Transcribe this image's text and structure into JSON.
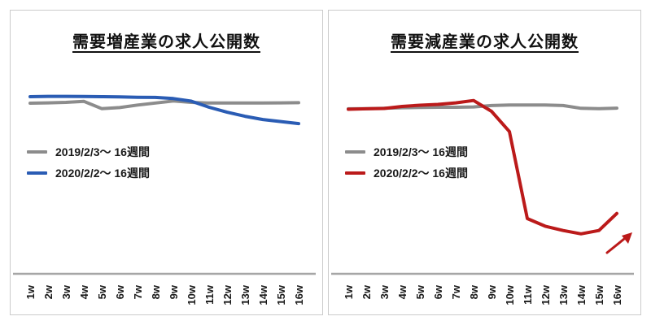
{
  "page": {
    "background": "#ffffff",
    "panel_border_color": "#cbcbcb",
    "axis_line_color": "#a6a6a6",
    "tick_label_color": "#1a1a1a"
  },
  "chart_data": [
    {
      "type": "line",
      "title": "需要増産業の求人公開数",
      "x": [
        "1w",
        "2w",
        "3w",
        "4w",
        "5w",
        "6w",
        "7w",
        "8w",
        "9w",
        "10w",
        "11w",
        "12w",
        "13w",
        "14w",
        "15w",
        "16w"
      ],
      "series": [
        {
          "name": "2019/2/3〜 16週間",
          "color": "#8c8c8c",
          "values": [
            100.4,
            100.6,
            100.9,
            101.5,
            97.2,
            97.8,
            99.3,
            100.5,
            101.7,
            100.9,
            100.5,
            100.5,
            100.5,
            100.5,
            100.6,
            100.7
          ]
        },
        {
          "name": "2020/2/2〜 16週間",
          "color": "#2a5cb4",
          "values": [
            104.2,
            104.4,
            104.4,
            104.3,
            104.2,
            104.1,
            103.9,
            103.8,
            103.1,
            101.6,
            98.0,
            95.1,
            92.7,
            90.8,
            89.6,
            88.4
          ]
        }
      ],
      "xlabel": "",
      "ylabel": "",
      "ylim": [
        0,
        120
      ],
      "y_axis": "hidden",
      "grid": "off",
      "legend_position": "middle-left"
    },
    {
      "type": "line",
      "title": "需要減産業の求人公開数",
      "x": [
        "1w",
        "2w",
        "3w",
        "4w",
        "5w",
        "6w",
        "7w",
        "8w",
        "9w",
        "10w",
        "11w",
        "12w",
        "13w",
        "14w",
        "15w",
        "16w"
      ],
      "series": [
        {
          "name": "2019/2/3〜 16週間",
          "color": "#8c8c8c",
          "values": [
            97.1,
            97.2,
            97.4,
            97.7,
            97.9,
            98.0,
            98.0,
            98.2,
            99.0,
            99.3,
            99.3,
            99.3,
            99.0,
            97.4,
            97.2,
            97.5
          ]
        },
        {
          "name": "2020/2/2〜 16週間",
          "color": "#bb1a1a",
          "values": [
            96.8,
            97.1,
            97.3,
            98.5,
            99.2,
            99.7,
            100.6,
            102.0,
            95.6,
            83.7,
            32.5,
            28.0,
            25.5,
            23.5,
            25.5,
            35.5
          ]
        }
      ],
      "xlabel": "",
      "ylabel": "",
      "ylim": [
        0,
        120
      ],
      "y_axis": "hidden",
      "grid": "off",
      "legend_position": "middle-left",
      "annotation": {
        "type": "arrow",
        "direction": "up-right",
        "color": "#bb1a1a"
      }
    }
  ]
}
